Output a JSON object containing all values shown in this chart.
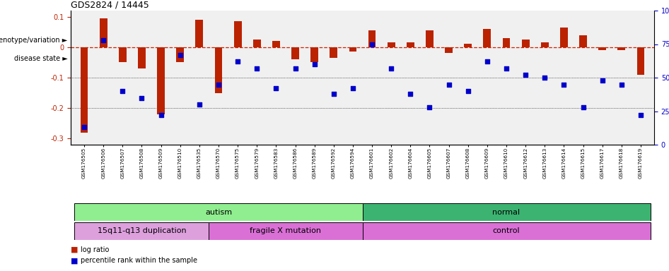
{
  "title": "GDS2824 / 14445",
  "samples": [
    "GSM176505",
    "GSM176506",
    "GSM176507",
    "GSM176508",
    "GSM176509",
    "GSM176510",
    "GSM176535",
    "GSM176570",
    "GSM176575",
    "GSM176579",
    "GSM176583",
    "GSM176586",
    "GSM176589",
    "GSM176592",
    "GSM176594",
    "GSM176601",
    "GSM176602",
    "GSM176604",
    "GSM176605",
    "GSM176607",
    "GSM176608",
    "GSM176609",
    "GSM176610",
    "GSM176612",
    "GSM176613",
    "GSM176614",
    "GSM176615",
    "GSM176617",
    "GSM176618",
    "GSM176619"
  ],
  "log_ratio": [
    -0.28,
    0.095,
    -0.05,
    -0.07,
    -0.22,
    -0.05,
    0.09,
    -0.15,
    0.085,
    0.025,
    0.02,
    -0.04,
    -0.05,
    -0.035,
    -0.015,
    0.055,
    0.015,
    0.015,
    0.055,
    -0.02,
    0.01,
    0.06,
    0.03,
    0.025,
    0.015,
    0.065,
    0.04,
    -0.01,
    -0.01,
    -0.09
  ],
  "percentile": [
    13,
    78,
    40,
    35,
    22,
    67,
    30,
    45,
    62,
    57,
    42,
    57,
    60,
    38,
    42,
    75,
    57,
    38,
    28,
    45,
    40,
    62,
    57,
    52,
    50,
    45,
    28,
    48,
    45,
    22
  ],
  "disease_state": [
    {
      "label": "autism",
      "start": 0,
      "end": 15,
      "color": "#90EE90"
    },
    {
      "label": "normal",
      "start": 15,
      "end": 30,
      "color": "#3CB371"
    }
  ],
  "genotype": [
    {
      "label": "15q11-q13 duplication",
      "start": 0,
      "end": 7,
      "color": "#DDA0DD"
    },
    {
      "label": "fragile X mutation",
      "start": 7,
      "end": 15,
      "color": "#DA70D6"
    },
    {
      "label": "control",
      "start": 15,
      "end": 30,
      "color": "#DA70D6"
    }
  ],
  "ylim_left": [
    -0.32,
    0.12
  ],
  "ylim_right": [
    0,
    100
  ],
  "bar_color": "#BB2200",
  "dot_color": "#0000CC",
  "zero_line_color": "#CC2200",
  "grid_color": "#000000",
  "bg_color": "#F0F0F0"
}
